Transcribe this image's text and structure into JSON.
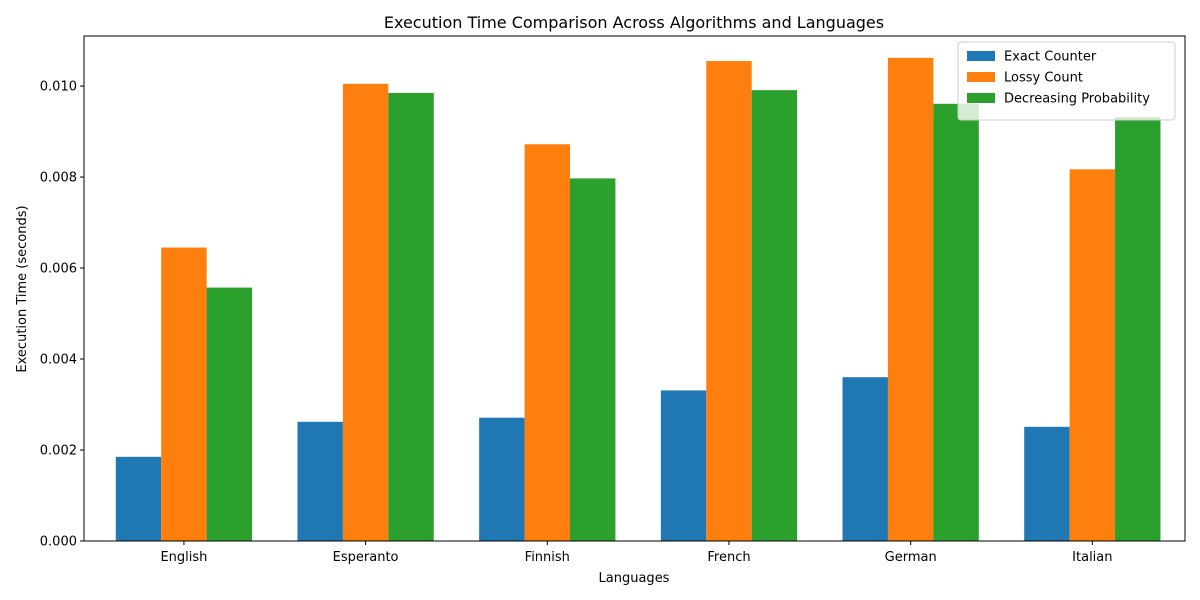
{
  "chart_data": {
    "type": "bar",
    "title": "Execution Time Comparison Across Algorithms and Languages",
    "xlabel": "Languages",
    "ylabel": "Execution Time (seconds)",
    "categories": [
      "English",
      "Esperanto",
      "Finnish",
      "French",
      "German",
      "Italian"
    ],
    "series": [
      {
        "name": "Exact Counter",
        "color": "#1f77b4",
        "values": [
          0.00185,
          0.00262,
          0.00271,
          0.00331,
          0.0036,
          0.00251
        ]
      },
      {
        "name": "Lossy Count",
        "color": "#ff7f0e",
        "values": [
          0.00645,
          0.01005,
          0.00872,
          0.01055,
          0.01062,
          0.00817
        ]
      },
      {
        "name": "Decreasing Probability",
        "color": "#2ca02c",
        "values": [
          0.00557,
          0.00985,
          0.00797,
          0.00991,
          0.00961,
          0.00932
        ]
      }
    ],
    "ylim": [
      0,
      0.0111
    ],
    "yticks": [
      "0.000",
      "0.002",
      "0.004",
      "0.006",
      "0.008",
      "0.010"
    ],
    "ytick_values": [
      0,
      0.002,
      0.004,
      0.006,
      0.008,
      0.01
    ],
    "grid": false,
    "legend_position": "top-right"
  }
}
